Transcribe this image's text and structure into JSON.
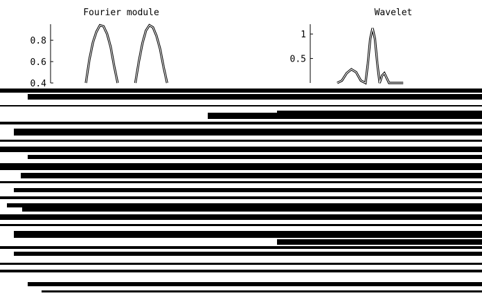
{
  "chart_data": [
    {
      "type": "line",
      "title": "Fourier module",
      "ylim": [
        0.4,
        0.95
      ],
      "yticks": [
        {
          "value": 0.8,
          "label": "0.8"
        },
        {
          "value": 0.6,
          "label": "0.6"
        },
        {
          "value": 0.4,
          "label": "0.4"
        }
      ],
      "xlim": [
        0,
        10
      ],
      "series": [
        {
          "x": [
            2.0,
            2.3,
            2.6,
            2.9,
            3.2,
            3.5,
            3.8,
            4.1,
            4.4,
            4.7,
            5.0,
            5.3,
            5.6,
            5.9,
            6.2,
            6.5,
            6.8,
            7.1,
            7.4,
            7.7,
            8.0,
            8.3,
            8.6,
            8.9
          ],
          "y": [
            0.4,
            0.62,
            0.78,
            0.88,
            0.94,
            0.93,
            0.86,
            0.74,
            0.56,
            0.4,
            null,
            null,
            null,
            null,
            0.4,
            0.6,
            0.77,
            0.89,
            0.94,
            0.92,
            0.84,
            0.72,
            0.55,
            0.4
          ]
        }
      ],
      "grid": false
    },
    {
      "type": "line",
      "title": "Wavelet",
      "ylim": [
        0.0,
        1.2
      ],
      "yticks": [
        {
          "value": 1.0,
          "label": "1"
        },
        {
          "value": 0.5,
          "label": "0.5"
        }
      ],
      "xlim": [
        0,
        10
      ],
      "series": [
        {
          "x": [
            1.0,
            1.4,
            1.8,
            2.2,
            2.6,
            3.0,
            3.4,
            3.6,
            3.8,
            4.0,
            4.2,
            4.4,
            4.6,
            4.8,
            5.0,
            5.2,
            5.4,
            5.8,
            6.2,
            6.6
          ],
          "y": [
            0.0,
            0.05,
            0.2,
            0.28,
            0.22,
            0.05,
            0.0,
            0.4,
            0.9,
            1.12,
            0.9,
            0.4,
            0.0,
            0.15,
            0.2,
            0.1,
            0.0,
            0.0,
            0.0,
            0.0
          ]
        }
      ],
      "grid": false
    }
  ],
  "corrupted_region": true
}
